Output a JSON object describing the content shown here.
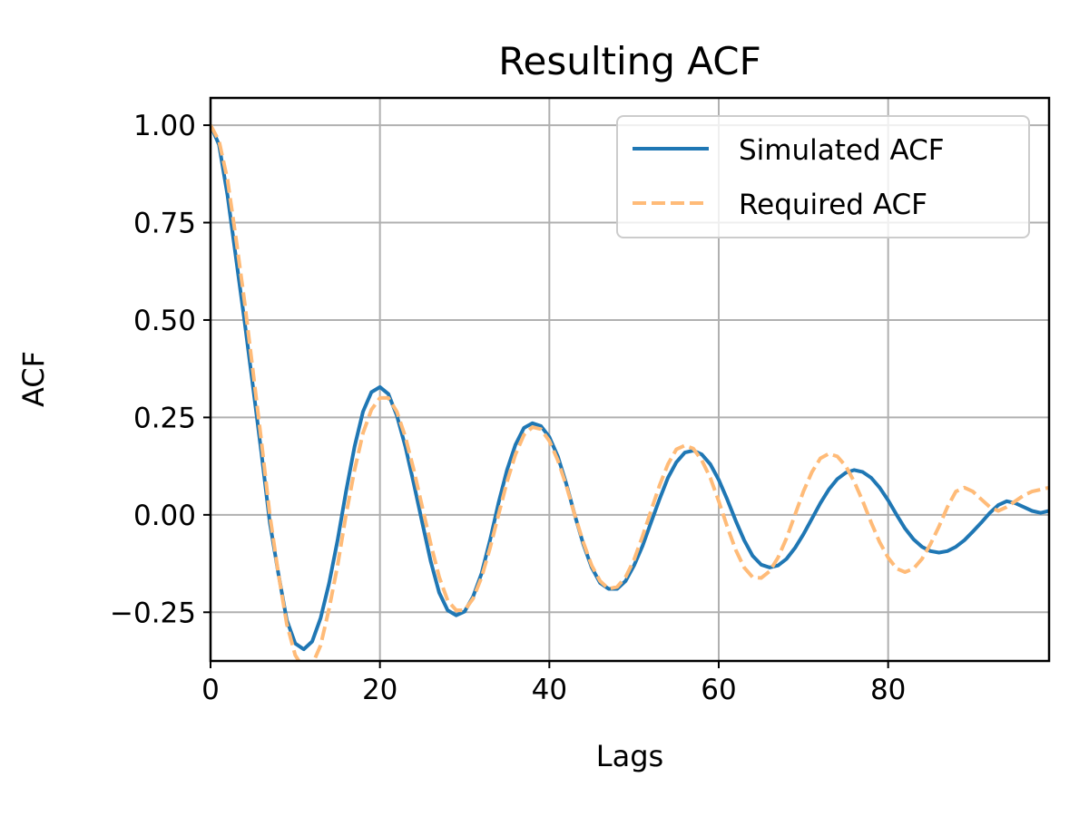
{
  "chart_data": {
    "type": "line",
    "title": "Resulting ACF",
    "xlabel": "Lags",
    "ylabel": "ACF",
    "xlim": [
      0,
      99
    ],
    "ylim": [
      -0.375,
      1.07
    ],
    "xticks": [
      0,
      20,
      40,
      60,
      80
    ],
    "yticks": [
      -0.25,
      0.0,
      0.25,
      0.5,
      0.75,
      1.0
    ],
    "xtick_labels": [
      "0",
      "20",
      "40",
      "60",
      "80"
    ],
    "ytick_labels": [
      "−0.25",
      "0.00",
      "0.25",
      "0.50",
      "0.75",
      "1.00"
    ],
    "grid": true,
    "legend_position": "top-right",
    "series": [
      {
        "name": "Simulated ACF",
        "color": "#1f77b4",
        "style": "solid",
        "x": [
          0,
          1,
          2,
          3,
          4,
          5,
          6,
          7,
          8,
          9,
          10,
          11,
          12,
          13,
          14,
          15,
          16,
          17,
          18,
          19,
          20,
          21,
          22,
          23,
          24,
          25,
          26,
          27,
          28,
          29,
          30,
          31,
          32,
          33,
          34,
          35,
          36,
          37,
          38,
          39,
          40,
          41,
          42,
          43,
          44,
          45,
          46,
          47,
          48,
          49,
          50,
          51,
          52,
          53,
          54,
          55,
          56,
          57,
          58,
          59,
          60,
          61,
          62,
          63,
          64,
          65,
          66,
          67,
          68,
          69,
          70,
          71,
          72,
          73,
          74,
          75,
          76,
          77,
          78,
          79,
          80,
          81,
          82,
          83,
          84,
          85,
          86,
          87,
          88,
          89,
          90,
          91,
          92,
          93,
          94,
          95,
          96,
          97,
          98,
          99
        ],
        "y": [
          1.0,
          0.95,
          0.82,
          0.66,
          0.5,
          0.33,
          0.16,
          -0.02,
          -0.15,
          -0.27,
          -0.33,
          -0.345,
          -0.325,
          -0.265,
          -0.175,
          -0.065,
          0.06,
          0.175,
          0.265,
          0.315,
          0.328,
          0.31,
          0.255,
          0.175,
          0.08,
          -0.02,
          -0.12,
          -0.2,
          -0.245,
          -0.258,
          -0.248,
          -0.21,
          -0.15,
          -0.065,
          0.03,
          0.115,
          0.18,
          0.223,
          0.235,
          0.228,
          0.2,
          0.15,
          0.08,
          0.0,
          -0.075,
          -0.135,
          -0.175,
          -0.19,
          -0.19,
          -0.17,
          -0.13,
          -0.08,
          -0.02,
          0.04,
          0.095,
          0.135,
          0.16,
          0.165,
          0.155,
          0.13,
          0.09,
          0.04,
          -0.015,
          -0.065,
          -0.105,
          -0.128,
          -0.135,
          -0.13,
          -0.113,
          -0.085,
          -0.05,
          -0.01,
          0.03,
          0.065,
          0.092,
          0.108,
          0.115,
          0.11,
          0.095,
          0.07,
          0.037,
          0.0,
          -0.035,
          -0.063,
          -0.082,
          -0.093,
          -0.097,
          -0.093,
          -0.082,
          -0.065,
          -0.043,
          -0.02,
          0.005,
          0.025,
          0.035,
          0.03,
          0.02,
          0.01,
          0.005,
          0.01
        ]
      },
      {
        "name": "Required ACF",
        "color": "#ffbb78",
        "style": "dashed",
        "x": [
          0,
          1,
          2,
          3,
          4,
          5,
          6,
          7,
          8,
          9,
          10,
          11,
          12,
          13,
          14,
          15,
          16,
          17,
          18,
          19,
          20,
          21,
          22,
          23,
          24,
          25,
          26,
          27,
          28,
          29,
          30,
          31,
          32,
          33,
          34,
          35,
          36,
          37,
          38,
          39,
          40,
          41,
          42,
          43,
          44,
          45,
          46,
          47,
          48,
          49,
          50,
          51,
          52,
          53,
          54,
          55,
          56,
          57,
          58,
          59,
          60,
          61,
          62,
          63,
          64,
          65,
          66,
          67,
          68,
          69,
          70,
          71,
          72,
          73,
          74,
          75,
          76,
          77,
          78,
          79,
          80,
          81,
          82,
          83,
          84,
          85,
          86,
          87,
          88,
          89,
          90,
          91,
          92,
          93,
          94,
          95,
          96,
          97,
          98,
          99
        ],
        "y": [
          1.0,
          0.96,
          0.86,
          0.71,
          0.55,
          0.37,
          0.19,
          0.0,
          -0.15,
          -0.28,
          -0.36,
          -0.395,
          -0.385,
          -0.335,
          -0.24,
          -0.13,
          0.0,
          0.115,
          0.21,
          0.27,
          0.3,
          0.3,
          0.265,
          0.2,
          0.115,
          0.02,
          -0.075,
          -0.16,
          -0.22,
          -0.245,
          -0.245,
          -0.215,
          -0.16,
          -0.085,
          0.0,
          0.085,
          0.155,
          0.205,
          0.225,
          0.22,
          0.19,
          0.14,
          0.075,
          0.0,
          -0.07,
          -0.13,
          -0.17,
          -0.19,
          -0.185,
          -0.16,
          -0.115,
          -0.055,
          0.01,
          0.075,
          0.13,
          0.168,
          0.178,
          0.17,
          0.14,
          0.095,
          0.035,
          -0.03,
          -0.09,
          -0.135,
          -0.16,
          -0.162,
          -0.145,
          -0.11,
          -0.06,
          0.0,
          0.06,
          0.11,
          0.145,
          0.157,
          0.15,
          0.125,
          0.085,
          0.035,
          -0.02,
          -0.07,
          -0.11,
          -0.138,
          -0.147,
          -0.138,
          -0.113,
          -0.075,
          -0.03,
          0.02,
          0.06,
          0.07,
          0.06,
          0.04,
          0.02,
          0.01,
          0.02,
          0.035,
          0.05,
          0.06,
          0.065,
          0.07
        ]
      }
    ]
  }
}
